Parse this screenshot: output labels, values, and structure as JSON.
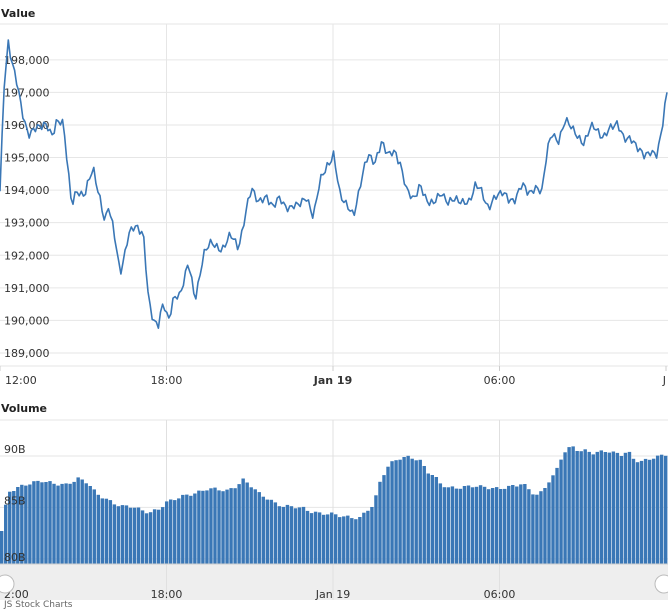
{
  "chart_data": [
    {
      "type": "line",
      "title": "Value",
      "series_name": "Value",
      "color": "#3a77b6",
      "x_ticks": [
        "12:00",
        "18:00",
        "Jan 19",
        "06:00",
        "J"
      ],
      "y_ticks": [
        "189,000",
        "190,000",
        "191,000",
        "192,000",
        "193,000",
        "194,000",
        "195,000",
        "196,000",
        "197,000",
        "198,000"
      ],
      "y_tick_values": [
        189000,
        190000,
        191000,
        192000,
        193000,
        194000,
        195000,
        196000,
        197000,
        198000
      ],
      "ylim": [
        188600,
        199100
      ],
      "x_range": [
        0,
        40
      ],
      "anchors": [
        [
          0,
          193900
        ],
        [
          0.25,
          197200
        ],
        [
          0.5,
          198600
        ],
        [
          1.0,
          197300
        ],
        [
          1.3,
          196400
        ],
        [
          1.7,
          195700
        ],
        [
          2.2,
          196000
        ],
        [
          2.8,
          195900
        ],
        [
          3.1,
          195700
        ],
        [
          3.4,
          196200
        ],
        [
          3.8,
          196000
        ],
        [
          4.3,
          193500
        ],
        [
          4.6,
          194000
        ],
        [
          5.1,
          193900
        ],
        [
          5.6,
          194600
        ],
        [
          6.0,
          193800
        ],
        [
          6.3,
          193000
        ],
        [
          6.5,
          193500
        ],
        [
          6.8,
          192800
        ],
        [
          7.2,
          191400
        ],
        [
          7.7,
          192700
        ],
        [
          8.2,
          192800
        ],
        [
          8.6,
          192700
        ],
        [
          8.9,
          190700
        ],
        [
          9.2,
          190000
        ],
        [
          9.5,
          189800
        ],
        [
          9.8,
          190500
        ],
        [
          10.1,
          190100
        ],
        [
          10.4,
          190700
        ],
        [
          10.8,
          190700
        ],
        [
          11.3,
          191800
        ],
        [
          11.7,
          190700
        ],
        [
          12.2,
          191900
        ],
        [
          12.7,
          192500
        ],
        [
          13.3,
          192100
        ],
        [
          13.8,
          192600
        ],
        [
          14.3,
          192300
        ],
        [
          14.7,
          193200
        ],
        [
          15.1,
          194000
        ],
        [
          15.5,
          193700
        ],
        [
          16.0,
          193800
        ],
        [
          16.4,
          193400
        ],
        [
          16.8,
          193800
        ],
        [
          17.4,
          193400
        ],
        [
          17.8,
          193500
        ],
        [
          18.4,
          193800
        ],
        [
          18.8,
          193200
        ],
        [
          19.2,
          194200
        ],
        [
          19.6,
          194800
        ],
        [
          20.0,
          195100
        ],
        [
          20.4,
          193800
        ],
        [
          20.8,
          193500
        ],
        [
          21.2,
          193300
        ],
        [
          21.7,
          194300
        ],
        [
          22.1,
          195100
        ],
        [
          22.5,
          194900
        ],
        [
          22.9,
          195500
        ],
        [
          23.3,
          195000
        ],
        [
          23.7,
          195200
        ],
        [
          24.0,
          194900
        ],
        [
          24.4,
          193900
        ],
        [
          24.8,
          193700
        ],
        [
          25.2,
          194200
        ],
        [
          25.6,
          193700
        ],
        [
          26.0,
          193500
        ],
        [
          26.5,
          194000
        ],
        [
          26.9,
          193600
        ],
        [
          27.3,
          193700
        ],
        [
          27.7,
          193600
        ],
        [
          28.1,
          193700
        ],
        [
          28.5,
          194100
        ],
        [
          28.9,
          193900
        ],
        [
          29.3,
          193500
        ],
        [
          29.7,
          193800
        ],
        [
          30.1,
          193900
        ],
        [
          30.5,
          193700
        ],
        [
          30.9,
          193800
        ],
        [
          31.3,
          194100
        ],
        [
          31.7,
          193900
        ],
        [
          32.1,
          194100
        ],
        [
          32.5,
          194000
        ],
        [
          32.8,
          195100
        ],
        [
          33.1,
          195700
        ],
        [
          33.5,
          195600
        ],
        [
          33.9,
          196100
        ],
        [
          34.3,
          195900
        ],
        [
          34.7,
          195600
        ],
        [
          35.0,
          195500
        ],
        [
          35.4,
          195900
        ],
        [
          35.8,
          195800
        ],
        [
          36.2,
          195700
        ],
        [
          36.6,
          195900
        ],
        [
          37.0,
          196000
        ],
        [
          37.4,
          195600
        ],
        [
          37.8,
          195700
        ],
        [
          38.2,
          195200
        ],
        [
          38.6,
          195100
        ],
        [
          39.0,
          195200
        ],
        [
          39.4,
          195100
        ],
        [
          39.7,
          195800
        ],
        [
          40.0,
          197000
        ]
      ]
    },
    {
      "type": "bar",
      "title": "Volume",
      "series_name": "Volume",
      "color": "#3a77b6",
      "x_ticks": [
        "2:00",
        "18:00",
        "Jan 19",
        "06:00"
      ],
      "y_ticks": [
        "80B",
        "85B",
        "90B"
      ],
      "y_tick_values": [
        80,
        85,
        90
      ],
      "ylim": [
        79.5,
        93.5
      ],
      "x_range": [
        0,
        40
      ],
      "anchors": [
        [
          0,
          81.5
        ],
        [
          0.5,
          86.5
        ],
        [
          1.5,
          87.2
        ],
        [
          2.5,
          87.6
        ],
        [
          3.3,
          87.3
        ],
        [
          4.0,
          87.2
        ],
        [
          4.7,
          87.8
        ],
        [
          5.3,
          87.4
        ],
        [
          5.8,
          86.3
        ],
        [
          6.3,
          85.9
        ],
        [
          6.8,
          85.4
        ],
        [
          7.4,
          85.1
        ],
        [
          8.0,
          85.1
        ],
        [
          8.5,
          84.7
        ],
        [
          9.0,
          84.5
        ],
        [
          9.5,
          84.8
        ],
        [
          10.0,
          85.5
        ],
        [
          10.6,
          85.9
        ],
        [
          11.2,
          86.2
        ],
        [
          11.8,
          86.4
        ],
        [
          12.4,
          86.8
        ],
        [
          13.0,
          86.8
        ],
        [
          13.6,
          86.6
        ],
        [
          14.2,
          87.1
        ],
        [
          14.6,
          87.7
        ],
        [
          15.0,
          87.2
        ],
        [
          15.5,
          86.4
        ],
        [
          16.0,
          85.9
        ],
        [
          16.5,
          85.4
        ],
        [
          17.0,
          85.1
        ],
        [
          17.6,
          85.1
        ],
        [
          18.2,
          84.9
        ],
        [
          18.6,
          84.6
        ],
        [
          19.2,
          84.4
        ],
        [
          19.8,
          84.4
        ],
        [
          20.4,
          84.2
        ],
        [
          21.0,
          84.0
        ],
        [
          21.6,
          84.0
        ],
        [
          22.0,
          84.7
        ],
        [
          22.4,
          85.3
        ],
        [
          22.8,
          87.6
        ],
        [
          23.2,
          88.9
        ],
        [
          23.6,
          89.5
        ],
        [
          24.0,
          89.8
        ],
        [
          24.4,
          89.9
        ],
        [
          24.8,
          89.8
        ],
        [
          25.2,
          89.5
        ],
        [
          25.6,
          88.5
        ],
        [
          26.0,
          88.1
        ],
        [
          26.4,
          87.3
        ],
        [
          26.9,
          86.9
        ],
        [
          27.4,
          86.9
        ],
        [
          27.9,
          87.0
        ],
        [
          28.4,
          87.1
        ],
        [
          28.9,
          87.0
        ],
        [
          29.4,
          86.9
        ],
        [
          29.9,
          86.8
        ],
        [
          30.4,
          87.0
        ],
        [
          30.9,
          87.1
        ],
        [
          31.3,
          87.4
        ],
        [
          31.7,
          86.7
        ],
        [
          32.1,
          86.2
        ],
        [
          32.5,
          86.5
        ],
        [
          32.9,
          87.6
        ],
        [
          33.3,
          88.4
        ],
        [
          33.6,
          89.7
        ],
        [
          33.9,
          90.6
        ],
        [
          34.3,
          90.9
        ],
        [
          34.7,
          90.5
        ],
        [
          35.1,
          90.5
        ],
        [
          35.5,
          90.3
        ],
        [
          36.0,
          90.4
        ],
        [
          36.4,
          90.5
        ],
        [
          36.8,
          90.3
        ],
        [
          37.2,
          90.1
        ],
        [
          37.6,
          90.5
        ],
        [
          38.0,
          89.6
        ],
        [
          38.4,
          89.5
        ],
        [
          38.8,
          89.6
        ],
        [
          39.2,
          89.9
        ],
        [
          39.6,
          90.0
        ],
        [
          40.0,
          90.2
        ]
      ]
    }
  ],
  "footer_text": "JS Stock Charts"
}
